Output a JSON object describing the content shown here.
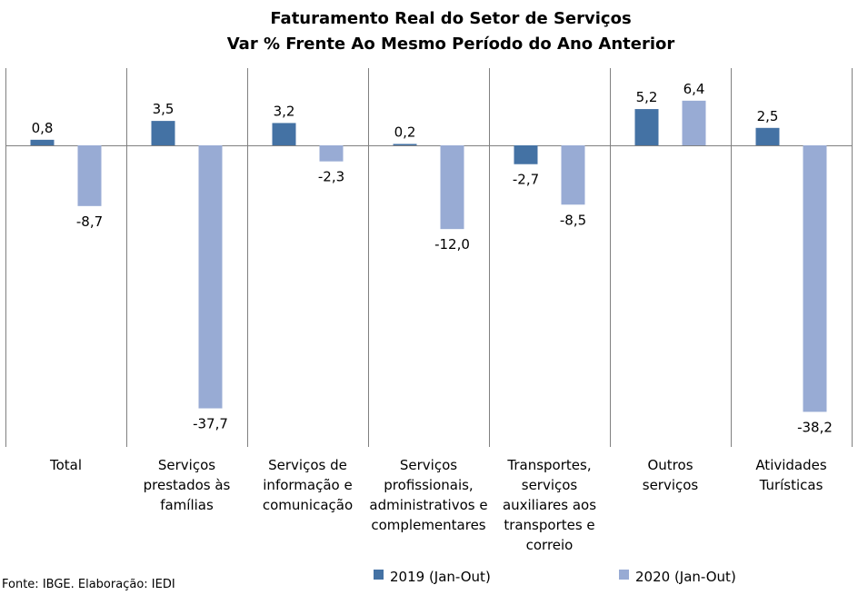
{
  "chart_data": {
    "type": "bar",
    "title": "Faturamento Real do Setor de Serviços",
    "subtitle": "Var % Frente Ao Mesmo Período do Ano Anterior",
    "categories": [
      "Total",
      "Serviços prestados às famílias",
      "Serviços de informação e comunicação",
      "Serviços profissionais, administrativos e complementares",
      "Transportes, serviços auxiliares aos transportes e correio",
      "Outros serviços",
      "Atividades Turísticas"
    ],
    "category_lines": [
      [
        "Total"
      ],
      [
        "Serviços",
        "prestados às",
        "famílias"
      ],
      [
        "Serviços de",
        "informação e",
        "comunicação"
      ],
      [
        "Serviços",
        "profissionais,",
        "administrativos e",
        "complementares"
      ],
      [
        "Transportes,",
        "serviços",
        "auxiliares aos",
        "transportes e",
        "correio"
      ],
      [
        "Outros",
        "serviços"
      ],
      [
        "Atividades",
        "Turísticas"
      ]
    ],
    "series": [
      {
        "name": "2019 (Jan-Out)",
        "color": "#4472A4",
        "values": [
          0.8,
          3.5,
          3.2,
          0.2,
          -2.7,
          5.2,
          2.5
        ],
        "labels": [
          "0,8",
          "3,5",
          "3,2",
          "0,2",
          "-2,7",
          "5,2",
          "2,5"
        ]
      },
      {
        "name": "2020 (Jan-Out)",
        "color": "#98ABD4",
        "values": [
          -8.7,
          -37.7,
          -2.3,
          -12.0,
          -8.5,
          6.4,
          -38.2
        ],
        "labels": [
          "-8,7",
          "-37,7",
          "-2,3",
          "-12,0",
          "-8,5",
          "6,4",
          "-38,2"
        ]
      }
    ],
    "ylim": [
      -42,
      11
    ],
    "grid": false,
    "legend": "bottom",
    "source": "Fonte: IBGE. Elaboração: IEDI"
  }
}
